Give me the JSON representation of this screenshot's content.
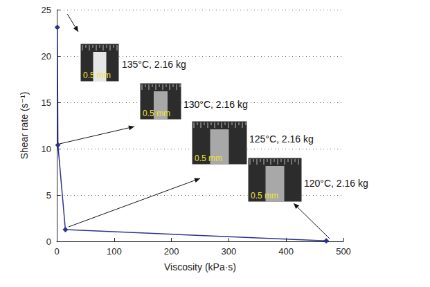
{
  "chart_data": {
    "type": "line",
    "x": [
      1,
      2,
      15,
      470
    ],
    "values": [
      23.1,
      10.4,
      1.27,
      0.05
    ],
    "color": "#2e3192",
    "marker": "diamond",
    "xlabel": "Viscosity (kPa·s)",
    "ylabel": "Shear rate (s⁻¹)",
    "xlim": [
      0,
      500
    ],
    "xticks": [
      0,
      100,
      200,
      300,
      400,
      500
    ],
    "ylim": [
      0,
      25
    ],
    "yticks": [
      0,
      5,
      10,
      15,
      20,
      25
    ],
    "grid": true,
    "annotations": [
      {
        "text": "135°C, 2.16 kg",
        "image_label": "0.5 mm"
      },
      {
        "text": "130°C, 2.16 kg",
        "image_label": "0.5 mm"
      },
      {
        "text": "125°C, 2.16 kg",
        "image_label": "0.5 mm"
      },
      {
        "text": "120°C, 2.16 kg",
        "image_label": "0.5 mm"
      }
    ]
  }
}
